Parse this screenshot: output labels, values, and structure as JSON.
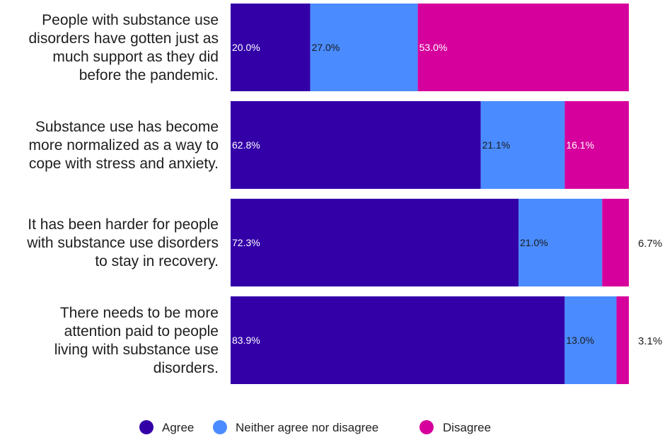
{
  "chart_data": {
    "type": "bar",
    "orientation": "horizontal",
    "stacked": true,
    "percent_scale": true,
    "categories": [
      [
        "People with substance use",
        "disorders have gotten just as",
        "much support as they did",
        "before the pandemic."
      ],
      [
        "Substance use has become",
        "more normalized as a way to",
        "cope with stress and anxiety."
      ],
      [
        "It has been harder for people",
        "with substance use disorders",
        "to stay in recovery."
      ],
      [
        "There needs to be more",
        "attention paid to people",
        "living with substance use",
        "disorders."
      ]
    ],
    "series": [
      {
        "name": "Agree",
        "color": "#3300a8",
        "values": [
          20.0,
          62.8,
          72.3,
          83.9
        ],
        "labels": [
          "20.0%",
          "62.8%",
          "72.3%",
          "83.9%"
        ]
      },
      {
        "name": "Neither agree nor disagree",
        "color": "#4a8cff",
        "values": [
          27.0,
          21.1,
          21.0,
          13.0
        ],
        "labels": [
          "27.0%",
          "21.1%",
          "21.0%",
          "13.0%"
        ]
      },
      {
        "name": "Disagree",
        "color": "#d6009d",
        "values": [
          53.0,
          16.1,
          6.7,
          3.1
        ],
        "labels": [
          "53.0%",
          "16.1%",
          "6.7%",
          "3.1%"
        ]
      }
    ],
    "xlim": [
      0,
      100
    ],
    "grid": false,
    "legend": "bottom"
  }
}
